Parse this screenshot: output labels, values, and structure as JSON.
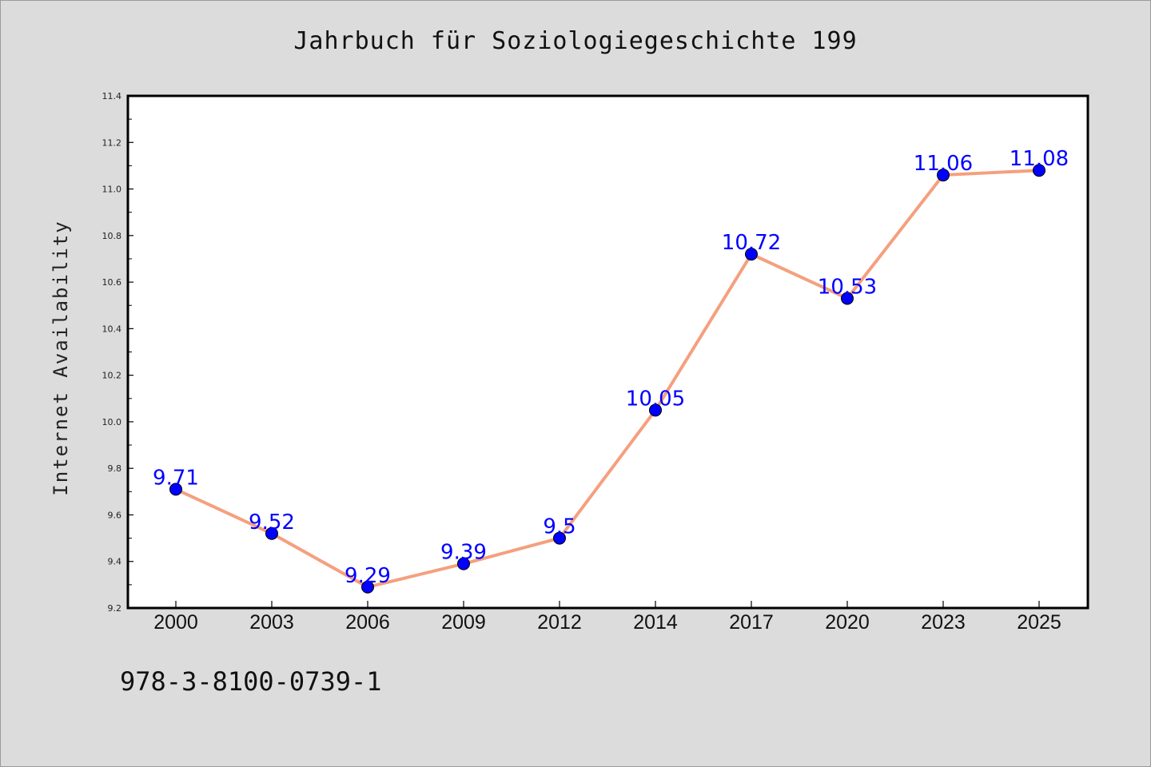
{
  "title": "Jahrbuch für Soziologiegeschichte 199",
  "footer_text": "978-3-8100-0739-1",
  "chart_data": {
    "type": "line",
    "title": "Jahrbuch für Soziologiegeschichte 199",
    "xlabel": "",
    "ylabel": "Internet Availability",
    "categories": [
      "2000",
      "2003",
      "2006",
      "2009",
      "2012",
      "2014",
      "2017",
      "2020",
      "2023",
      "2025"
    ],
    "series": [
      {
        "values": [
          9.71,
          9.52,
          9.29,
          9.39,
          9.5,
          10.05,
          10.72,
          10.53,
          11.06,
          11.08
        ],
        "data_labels": [
          "9.71",
          "9.52",
          "9.29",
          "9.39",
          "9.5",
          "10.05",
          "10.72",
          "10.53",
          "11.06",
          "11.08"
        ],
        "line_color": "#f4a07e",
        "marker_color": "#0000ff"
      }
    ],
    "ylim": [
      9.2,
      11.4
    ],
    "yticks": [
      "9.2",
      "9.4",
      "9.6",
      "9.8",
      "10.0",
      "10.2",
      "10.4",
      "10.6",
      "10.8",
      "11.0",
      "11.2",
      "11.4"
    ],
    "grid": false,
    "legend": "none",
    "colors": {
      "background": "#dcdcdc",
      "plot_background": "#ffffff",
      "label": "#0000ff"
    }
  }
}
